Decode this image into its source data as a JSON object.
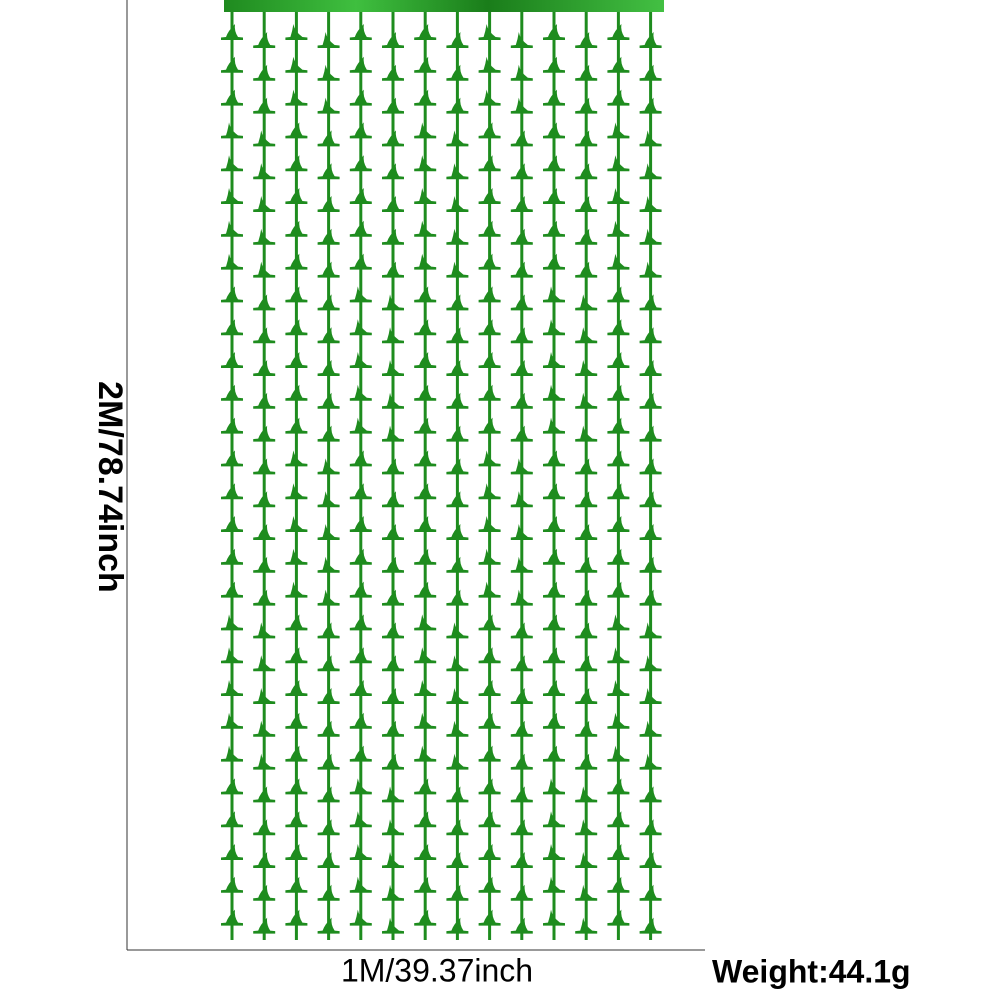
{
  "height_label": "2M/78.74inch",
  "width_label": "1M/39.37inch",
  "weight_label": "Weight:44.1g"
}
